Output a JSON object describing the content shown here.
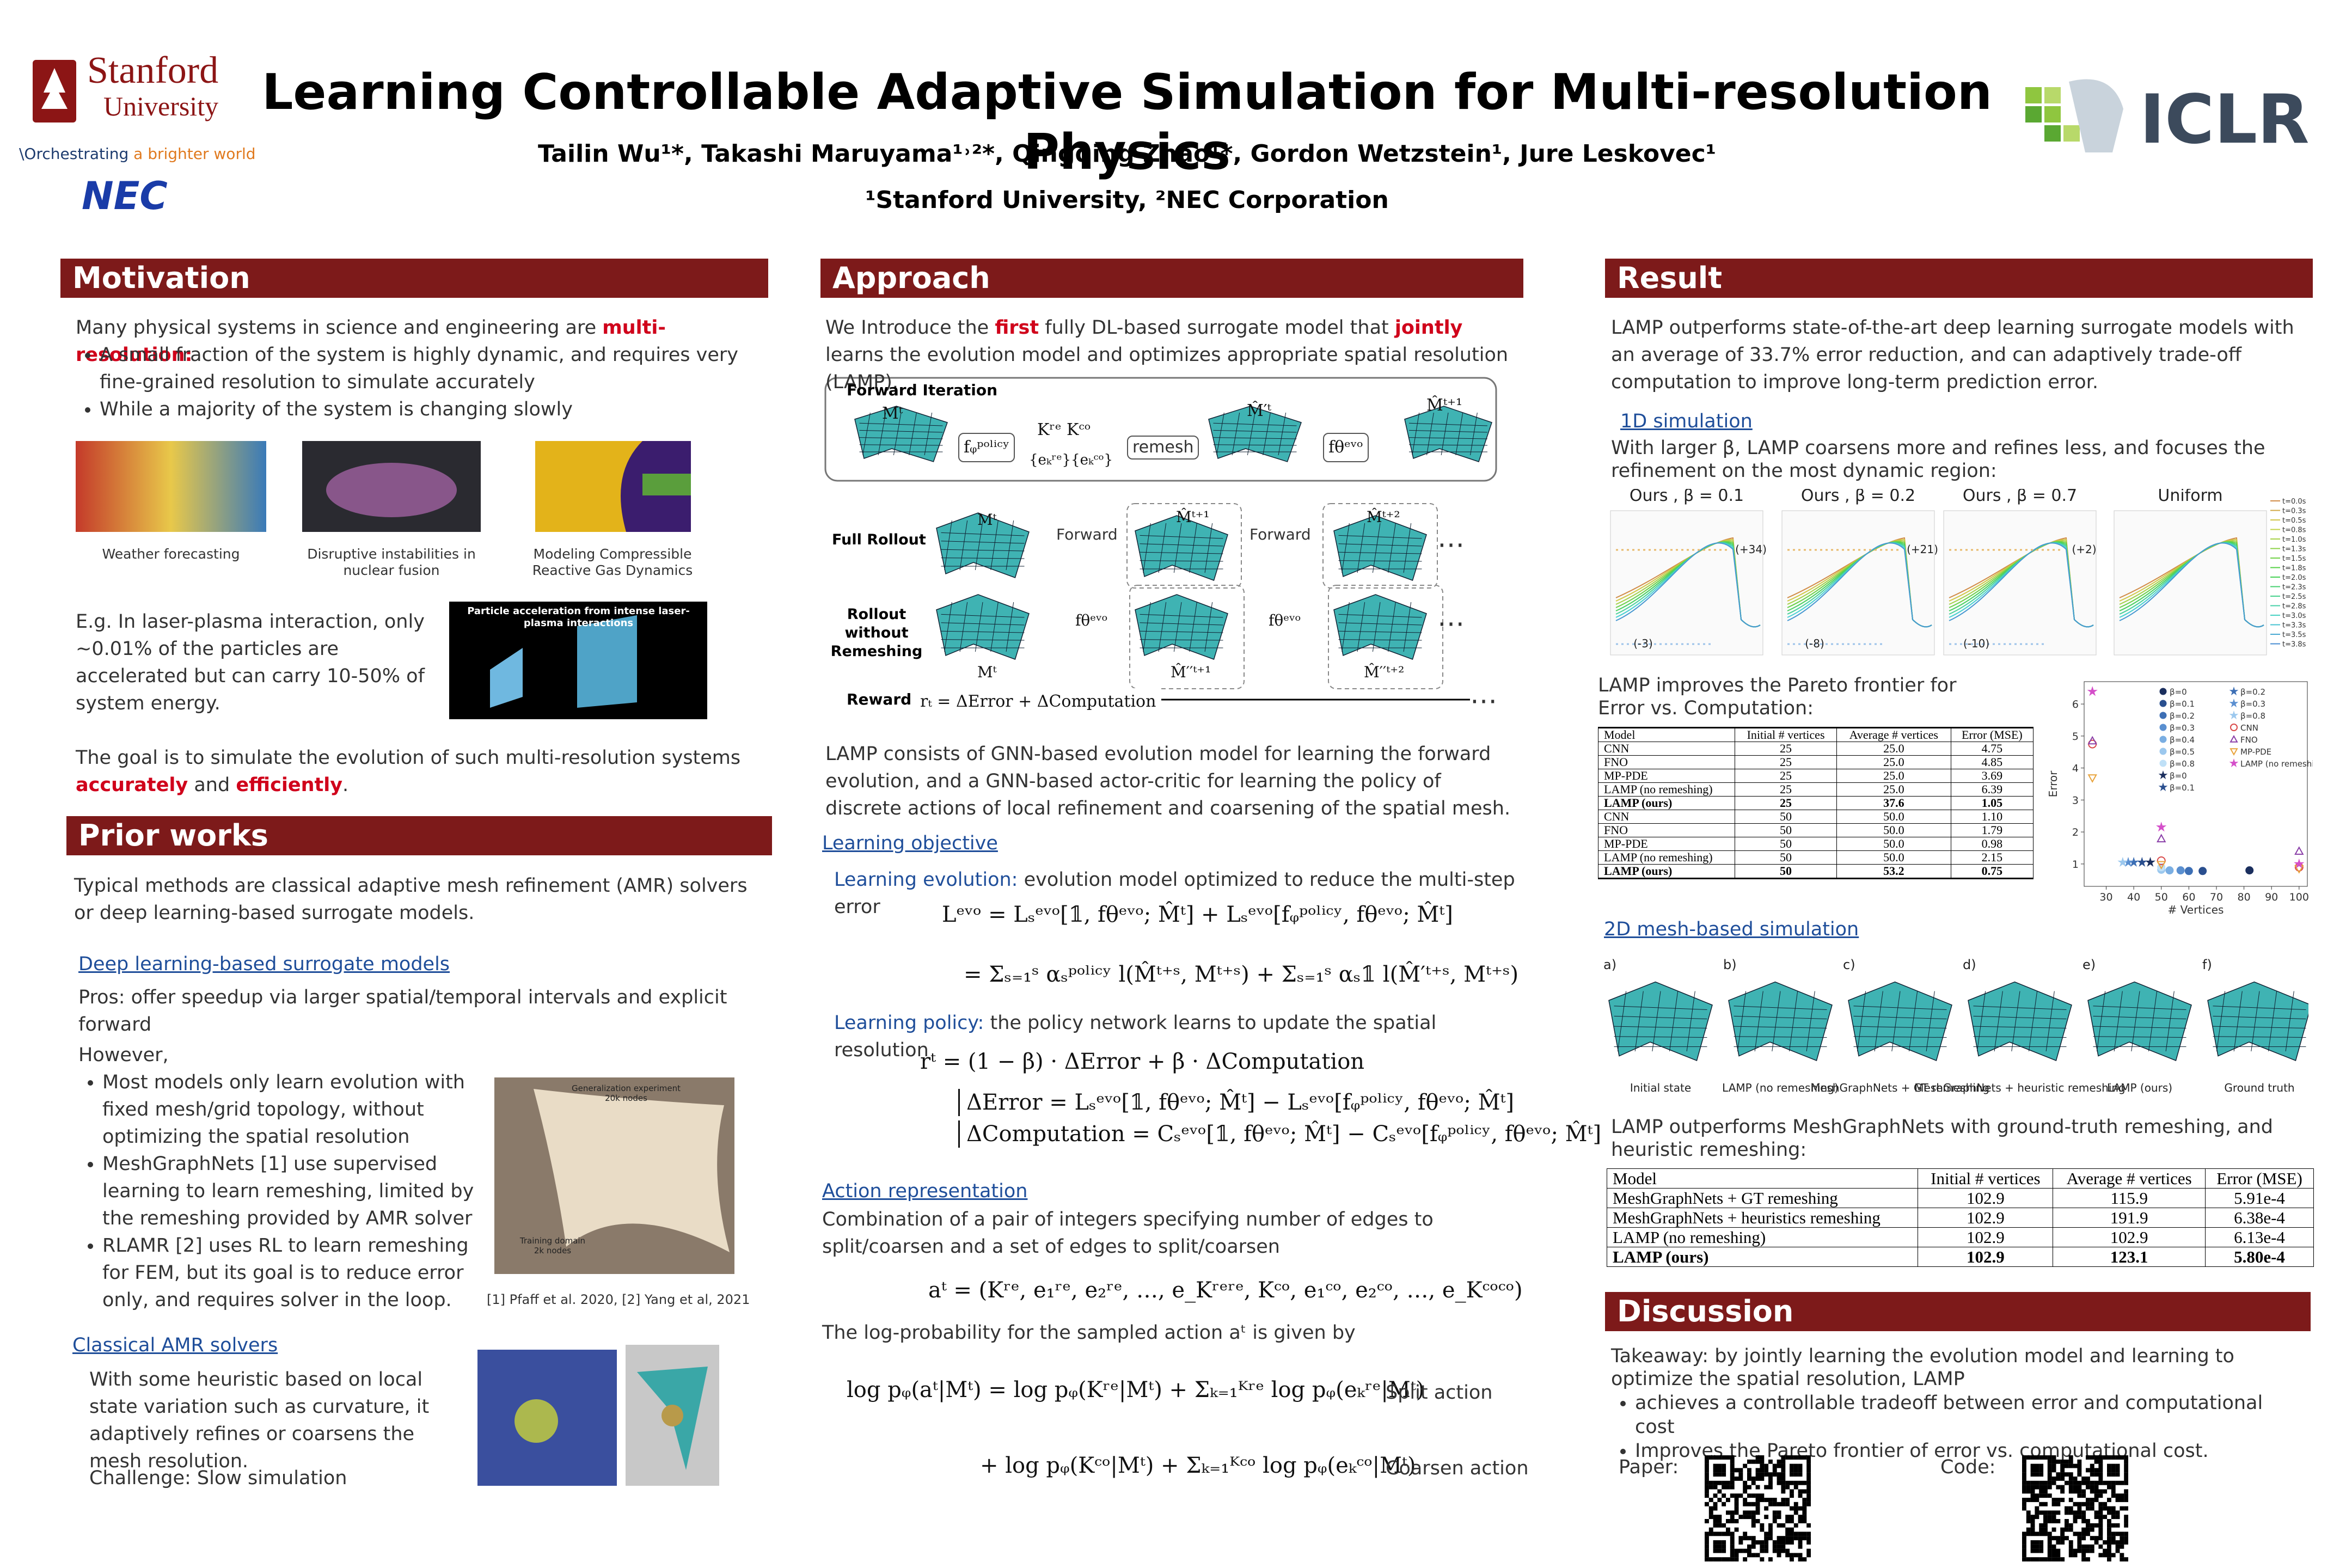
{
  "header": {
    "logo_stanford": "Stanford",
    "logo_university": "University",
    "tagline": [
      "\\Orchestrating",
      " a brighter world"
    ],
    "logo_nec": "NEC",
    "logo_iclr": "ICLR",
    "title": "Learning Controllable Adaptive Simulation for Multi-resolution Physics",
    "authors": "Tailin Wu¹*, Takashi Maruyama¹˒²*, Qingqing Zhao¹*,  Gordon Wetzstein¹, Jure Leskovec¹",
    "affiliations": "¹Stanford University, ²NEC Corporation"
  },
  "motivation": {
    "heading": "Motivation",
    "intro": [
      "Many physical systems in science and engineering are ",
      "multi-resolution:"
    ],
    "bullets": [
      "A small fraction of the system is highly dynamic, and requires very fine-grained resolution to simulate accurately",
      "While a majority of the system is changing slowly"
    ],
    "captions": [
      "Weather forecasting",
      "Disruptive instabilities in nuclear fusion",
      "Modeling Compressible Reactive Gas Dynamics"
    ],
    "example": "E.g. In laser-plasma interaction, only ~0.01% of the particles are accelerated but can carry 10-50% of system energy.",
    "example_image_title": "Particle acceleration from intense laser-plasma interactions",
    "goal": [
      "The goal is to simulate the evolution of such multi-resolution systems ",
      "accurately",
      " and ",
      "efficiently",
      "."
    ]
  },
  "prior_works": {
    "heading": "Prior works",
    "intro": "Typical methods are classical adaptive mesh refinement (AMR) solvers or deep learning-based surrogate models.",
    "link_dl": "Deep learning-based surrogate models",
    "pros": "Pros: offer speedup via larger spatial/temporal intervals and explicit forward",
    "however": "However,",
    "bullets": [
      "Most models only learn evolution with fixed mesh/grid topology, without optimizing the spatial resolution",
      "MeshGraphNets [1] use supervised learning to learn remeshing, limited by the remeshing provided by AMR solver",
      "RLAMR [2] uses RL to learn remeshing for FEM, but its goal is to reduce error only, and requires solver in the loop."
    ],
    "figure_texts": [
      "Generalization experiment",
      "20k nodes",
      "Training domain",
      "2k nodes"
    ],
    "references": "[1] Pfaff et al. 2020, [2] Yang et al, 2021",
    "link_amr": "Classical AMR solvers",
    "amr_text": "With some heuristic based on local state variation such as curvature, it adaptively refines or coarsens the mesh resolution.",
    "challenge": "Challenge: Slow simulation"
  },
  "approach": {
    "heading": "Approach",
    "intro": [
      "We Introduce the ",
      "first",
      " fully DL-based surrogate model that ",
      "jointly",
      " learns the evolution model and optimizes appropriate spatial resolution (LAMP)."
    ],
    "diagram": {
      "forward_iteration": "Forward Iteration",
      "m_t": "Mᵗ",
      "policy": "fᵩᵖᵒˡⁱᶜʸ",
      "k": "Kʳᵉ Kᶜᵒ",
      "edges": "{eₖʳᵉ}{eₖᶜᵒ}",
      "remesh": "remesh",
      "m_prime": "M̂′ᵗ",
      "evo": "fθᵉᵛᵒ",
      "m_next": "M̂ᵗ⁺¹",
      "full_rollout": "Full Rollout",
      "no_remesh": "Rollout without Remeshing",
      "forward": "Forward",
      "m_t2": "M̂ᵗ⁺²",
      "m_pp1": "M̂′′ᵗ⁺¹",
      "m_pp2": "M̂′′ᵗ⁺²",
      "reward": "Reward",
      "reward_eq": "rₜ = ΔError + ΔComputation",
      "dots": "⋯"
    },
    "gnn": "LAMP consists of GNN-based evolution model for learning the forward evolution, and a GNN-based actor-critic for learning the policy of discrete actions of local refinement and coarsening of the spatial mesh.",
    "link_objective": "Learning objective",
    "evolution": [
      "Learning evolution:",
      " evolution model optimized to reduce the multi-step error"
    ],
    "eq_loss1": "Lᵉᵛᵒ = Lₛᵉᵛᵒ[𝟙, fθᵉᵛᵒ; M̂ᵗ] + Lₛᵉᵛᵒ[fᵩᵖᵒˡⁱᶜʸ, fθᵉᵛᵒ; M̂ᵗ]",
    "eq_loss2": "= Σₛ₌₁ˢ αₛᵖᵒˡⁱᶜʸ l(M̂ᵗ⁺ˢ, Mᵗ⁺ˢ) + Σₛ₌₁ˢ αₛ𝟙 l(M̂′ᵗ⁺ˢ, Mᵗ⁺ˢ)",
    "policy": [
      "Learning policy:",
      " the policy network learns to update the spatial resolution"
    ],
    "eq_reward": "rᵗ = (1 − β) · ΔError + β · ΔComputation",
    "eq_error": "ΔError = Lₛᵉᵛᵒ[𝟙, fθᵉᵛᵒ; M̂ᵗ] − Lₛᵉᵛᵒ[fᵩᵖᵒˡⁱᶜʸ, fθᵉᵛᵒ; M̂ᵗ]",
    "eq_comp": "ΔComputation = Cₛᵉᵛᵒ[𝟙, fθᵉᵛᵒ; M̂ᵗ] − Cₛᵉᵛᵒ[fᵩᵖᵒˡⁱᶜʸ, fθᵉᵛᵒ; M̂ᵗ]",
    "link_action": "Action representation",
    "action_text": "Combination of a pair of integers specifying number of edges to split/coarsen and a set of edges to split/coarsen",
    "eq_action": "aᵗ = (Kʳᵉ, e₁ʳᵉ, e₂ʳᵉ, …, e_Kʳᵉʳᵉ, Kᶜᵒ, e₁ᶜᵒ, e₂ᶜᵒ, …, e_Kᶜᵒᶜᵒ)",
    "logprob_text": "The log-probability for the sampled action aᵗ is given by",
    "eq_log1": "log pᵩ(aᵗ|Mᵗ) = log pᵩ(Kʳᵉ|Mᵗ) + Σₖ₌₁ᴷʳᵉ log pᵩ(eₖʳᵉ|Mᵗ)",
    "eq_log2": "+ log pᵩ(Kᶜᵒ|Mᵗ) + Σₖ₌₁ᴷᶜᵒ log pᵩ(eₖᶜᵒ|Mᵗ)",
    "split": "Split action",
    "coarsen": "Coarsen action"
  },
  "result": {
    "heading": "Result",
    "intro": "LAMP outperforms state-of-the-art deep learning surrogate models with an average of 33.7% error reduction, and can adaptively trade-off computation to improve long-term prediction error.",
    "link_1d": "1D simulation",
    "text_1d": "With larger β, LAMP coarsens more and refines less, and focuses the refinement on the most dynamic region:",
    "plots_1d": {
      "titles": [
        "Ours , β = 0.1",
        "Ours , β = 0.2",
        "Ours , β = 0.7",
        "Uniform"
      ],
      "top_notes": [
        "(+34)",
        "(+21)",
        "(+2)"
      ],
      "bottom_notes": [
        "(-3)",
        "(-8)",
        "(-10)"
      ],
      "legend": [
        "t=0.0s",
        "t=0.3s",
        "t=0.5s",
        "t=0.8s",
        "t=1.0s",
        "t=1.3s",
        "t=1.5s",
        "t=1.8s",
        "t=2.0s",
        "t=2.3s",
        "t=2.5s",
        "t=2.8s",
        "t=3.0s",
        "t=3.3s",
        "t=3.5s",
        "t=3.8s"
      ]
    },
    "pareto_text": "LAMP improves the Pareto frontier for Error vs. Computation:",
    "table1": {
      "header": [
        "Model",
        "Initial # vertices",
        "Average # vertices",
        "Error (MSE)"
      ],
      "rows": [
        [
          "CNN",
          "25",
          "25.0",
          "4.75"
        ],
        [
          "FNO",
          "25",
          "25.0",
          "4.85"
        ],
        [
          "MP-PDE",
          "25",
          "25.0",
          "3.69"
        ],
        [
          "LAMP (no remeshing)",
          "25",
          "25.0",
          "6.39"
        ],
        [
          "LAMP (ours)",
          "25",
          "37.6",
          "1.05"
        ],
        [
          "CNN",
          "50",
          "50.0",
          "1.10"
        ],
        [
          "FNO",
          "50",
          "50.0",
          "1.79"
        ],
        [
          "MP-PDE",
          "50",
          "50.0",
          "0.98"
        ],
        [
          "LAMP (no remeshing)",
          "50",
          "50.0",
          "2.15"
        ],
        [
          "LAMP (ours)",
          "50",
          "53.2",
          "0.75"
        ]
      ]
    },
    "pareto_chart": {
      "type": "scatter",
      "xlabel": "# Vertices",
      "ylabel": "Error",
      "xlim": [
        22,
        103
      ],
      "ylim": [
        0.3,
        6.7
      ],
      "xticks": [
        30,
        40,
        50,
        60,
        70,
        80,
        90,
        100
      ],
      "yticks": [
        1,
        2,
        3,
        4,
        5,
        6
      ],
      "series": [
        {
          "name": "β=0",
          "color": "#1b2f5e",
          "marker": "circle",
          "x": [
            82
          ],
          "values": [
            0.8
          ]
        },
        {
          "name": "β=0.1",
          "color": "#2a4f8f",
          "marker": "circle",
          "x": [
            65
          ],
          "values": [
            0.78
          ]
        },
        {
          "name": "β=0.2",
          "color": "#3d6fb5",
          "marker": "circle",
          "x": [
            60
          ],
          "values": [
            0.78
          ]
        },
        {
          "name": "β=0.3",
          "color": "#5a8fd0",
          "marker": "circle",
          "x": [
            57
          ],
          "values": [
            0.8
          ]
        },
        {
          "name": "β=0.4",
          "color": "#7aaee2",
          "marker": "circle",
          "x": [
            53
          ],
          "values": [
            0.8
          ]
        },
        {
          "name": "β=0.5",
          "color": "#9cc8ee",
          "marker": "circle",
          "x": [
            50
          ],
          "values": [
            0.82
          ]
        },
        {
          "name": "β=0.8",
          "color": "#bfe0f7",
          "marker": "circle",
          "x": [
            50
          ],
          "values": [
            0.9
          ]
        },
        {
          "name": "β=0",
          "color": "#1b2f5e",
          "marker": "star",
          "x": [
            46
          ],
          "values": [
            1.05
          ]
        },
        {
          "name": "β=0.1",
          "color": "#2a4f8f",
          "marker": "star",
          "x": [
            43
          ],
          "values": [
            1.05
          ]
        },
        {
          "name": "β=0.2",
          "color": "#3d6fb5",
          "marker": "star",
          "x": [
            40
          ],
          "values": [
            1.05
          ]
        },
        {
          "name": "β=0.3",
          "color": "#5a8fd0",
          "marker": "star",
          "x": [
            38
          ],
          "values": [
            1.05
          ]
        },
        {
          "name": "β=0.8",
          "color": "#9cc8ee",
          "marker": "star",
          "x": [
            36
          ],
          "values": [
            1.05
          ]
        },
        {
          "name": "CNN",
          "color": "#d94a4a",
          "marker": "circle-open",
          "x": [
            25,
            50,
            100
          ],
          "values": [
            4.75,
            1.1,
            0.9
          ]
        },
        {
          "name": "FNO",
          "color": "#8a3fa8",
          "marker": "triangle",
          "x": [
            25,
            50,
            100
          ],
          "values": [
            4.85,
            1.79,
            1.4
          ]
        },
        {
          "name": "MP-PDE",
          "color": "#e8a33c",
          "marker": "triangle-down",
          "x": [
            25,
            50,
            100
          ],
          "values": [
            3.69,
            0.98,
            0.85
          ]
        },
        {
          "name": "LAMP (no remeshing)",
          "color": "#d44fc9",
          "marker": "star",
          "x": [
            25,
            50,
            100
          ],
          "values": [
            6.39,
            2.15,
            1.0
          ]
        }
      ]
    },
    "link_2d": "2D mesh-based simulation",
    "mesh_letters": [
      "a)",
      "b)",
      "c)",
      "d)",
      "e)",
      "f)"
    ],
    "mesh_captions": [
      "Initial state",
      "LAMP (no remeshing)",
      "MeshGraphNets + GT remeshing",
      "MeshGraphNets + heuristic remeshing",
      "LAMP (ours)",
      "Ground truth"
    ],
    "mgn_text": "LAMP outperforms MeshGraphNets with ground-truth remeshing, and heuristic remeshing:",
    "table2": {
      "header": [
        "Model",
        "Initial # vertices",
        "Average # vertices",
        "Error (MSE)"
      ],
      "rows": [
        [
          "MeshGraphNets + GT remeshing",
          "102.9",
          "115.9",
          "5.91e-4"
        ],
        [
          "MeshGraphNets + heuristics remeshing",
          "102.9",
          "191.9",
          "6.38e-4"
        ],
        [
          "LAMP (no remeshing)",
          "102.9",
          "102.9",
          "6.13e-4"
        ],
        [
          "LAMP (ours)",
          "102.9",
          "123.1",
          "5.80e-4"
        ]
      ]
    }
  },
  "discussion": {
    "heading": "Discussion",
    "takeaway": "Takeaway: by jointly learning the evolution model and learning to optimize the spatial resolution, LAMP",
    "bullets": [
      "achieves a controllable tradeoff between error and computational cost",
      "Improves the Pareto frontier of error vs. computational cost."
    ],
    "paper": "Paper:",
    "code": "Code:"
  }
}
